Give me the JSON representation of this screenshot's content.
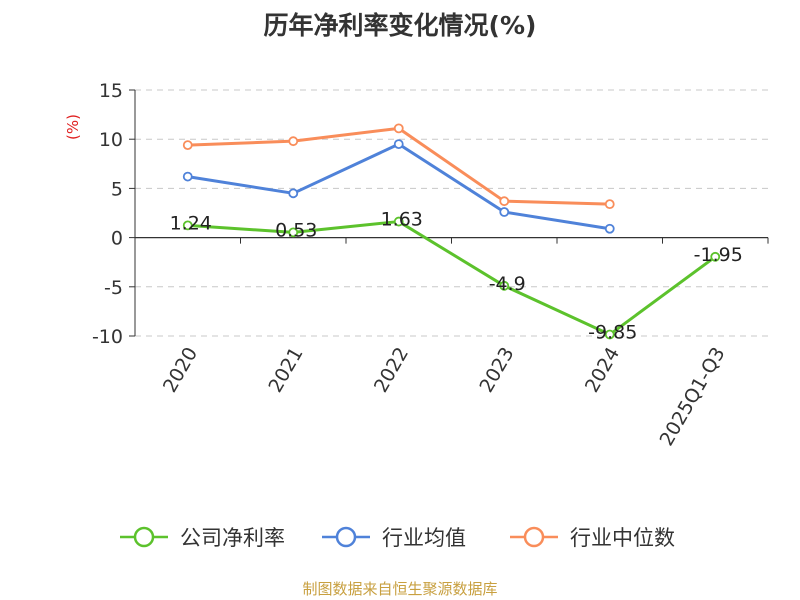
{
  "chart_data": {
    "type": "line",
    "title": "历年净利率变化情况(%)",
    "ylabel": "(%)",
    "categories": [
      "2020",
      "2021",
      "2022",
      "2023",
      "2024",
      "2025Q1-Q3"
    ],
    "yticks": [
      "15",
      "10",
      "5",
      "0",
      "-5",
      "-10"
    ],
    "ylim": [
      -10,
      15
    ],
    "grid": true,
    "legend_position": "bottom",
    "series": [
      {
        "name": "公司净利率",
        "color": "#5cc22c",
        "values": [
          1.24,
          0.53,
          1.63,
          -4.9,
          -9.85,
          -1.95
        ],
        "labels": [
          "1.24",
          "0.53",
          "1.63",
          "-4.9",
          "-9.85",
          "-1.95"
        ]
      },
      {
        "name": "行业均值",
        "color": "#4f82d9",
        "values": [
          6.2,
          4.5,
          9.5,
          2.6,
          0.9,
          null
        ]
      },
      {
        "name": "行业中位数",
        "color": "#f98d5a",
        "values": [
          9.4,
          9.8,
          11.1,
          3.7,
          3.4,
          null
        ]
      }
    ]
  },
  "source": "制图数据来自恒生聚源数据库"
}
